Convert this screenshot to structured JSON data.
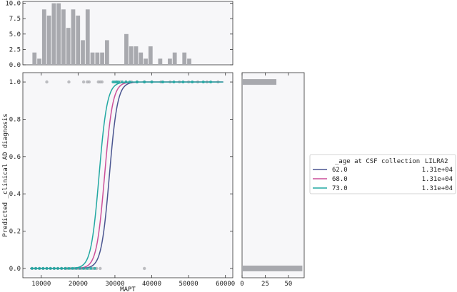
{
  "chart_data": [
    {
      "id": "main",
      "type": "line",
      "xlabel": "MAPT",
      "ylabel": "Predicted _clinical AD diagnosis",
      "xlim": [
        5000,
        62000
      ],
      "ylim": [
        -0.05,
        1.05
      ],
      "xticks": [
        10000,
        20000,
        30000,
        40000,
        50000,
        60000
      ],
      "xtick_labels": [
        "10000",
        "20000",
        "30000",
        "40000",
        "50000",
        "60000"
      ],
      "yticks": [
        0.0,
        0.2,
        0.4,
        0.6,
        0.8,
        1.0
      ],
      "ytick_labels": [
        "0.0",
        "0.2",
        "0.4",
        "0.6",
        "0.8",
        "1.0"
      ],
      "x_range": [
        7000,
        59500
      ],
      "series": [
        {
          "name": "62.0",
          "color": "#4a5590",
          "curve": {
            "midpoint": 28500,
            "scale": 1100
          }
        },
        {
          "name": "68.0",
          "color": "#cc4f99",
          "curve": {
            "midpoint": 27200,
            "scale": 1100
          }
        },
        {
          "name": "73.0",
          "color": "#22a8a2",
          "curve": {
            "midpoint": 25700,
            "scale": 1100
          }
        }
      ],
      "observed_points": {
        "color": "#a8a9ae",
        "x_at_1": [
          11500,
          17500,
          21500,
          22500,
          23000,
          25500,
          26000,
          26500,
          30500,
          31500,
          33000,
          34500,
          36000,
          38000,
          40000,
          42500,
          45000,
          47500,
          50000,
          52500,
          55000,
          58000
        ],
        "x_at_0": [
          7500,
          8500,
          9500,
          10500,
          11500,
          12500,
          13500,
          14500,
          15500,
          16500,
          17000,
          18000,
          19000,
          20000,
          21000,
          22000,
          23000,
          24000,
          25000,
          26000,
          38000
        ]
      },
      "fitted_points": {
        "x_at_1": [
          29500,
          30000,
          30500,
          31000,
          32000,
          33000,
          34000,
          36000,
          38000,
          40000,
          43000,
          46000,
          48500,
          51000,
          54000,
          56000
        ],
        "x_at_0": [
          7500,
          8500,
          9500,
          10500,
          11500,
          12500,
          13500,
          14500,
          15500,
          16500,
          17500,
          18500,
          19500,
          20500,
          21500,
          22500,
          23500,
          24500
        ]
      }
    },
    {
      "id": "top_histogram",
      "type": "bar",
      "ylim": [
        0,
        10.3
      ],
      "yticks": [
        0.0,
        2.5,
        5.0,
        7.5,
        10.0
      ],
      "ytick_labels": [
        "0.0",
        "2.5",
        "5.0",
        "7.5",
        "10.0"
      ],
      "bin_start": 7500,
      "bin_width": 1313,
      "values": [
        2,
        1,
        9,
        8,
        10,
        10,
        9,
        6,
        9,
        8,
        4,
        9,
        2,
        2,
        2,
        4,
        0,
        0,
        0,
        5,
        3,
        3,
        2,
        1,
        3,
        0,
        1,
        0,
        1,
        2,
        0,
        2,
        1,
        0,
        0,
        0,
        0,
        0,
        0,
        0
      ],
      "color": "#a8a9ae"
    },
    {
      "id": "right_histogram",
      "type": "bar",
      "orientation": "horizontal",
      "xlim": [
        0,
        67
      ],
      "xticks": [
        0,
        25,
        50
      ],
      "xtick_labels": [
        "0",
        "25",
        "50"
      ],
      "bars": [
        {
          "y_center": 0.0,
          "value": 65
        },
        {
          "y_center": 1.0,
          "value": 37
        }
      ],
      "color": "#a8a9ae"
    }
  ],
  "legend": {
    "header_left": "_age at CSF collection",
    "header_right": "LILRA2",
    "entries": [
      {
        "label": "62.0",
        "value": "1.31e+04",
        "color": "#4a5590"
      },
      {
        "label": "68.0",
        "value": "1.31e+04",
        "color": "#cc4f99"
      },
      {
        "label": "73.0",
        "value": "1.31e+04",
        "color": "#22a8a2"
      }
    ]
  }
}
